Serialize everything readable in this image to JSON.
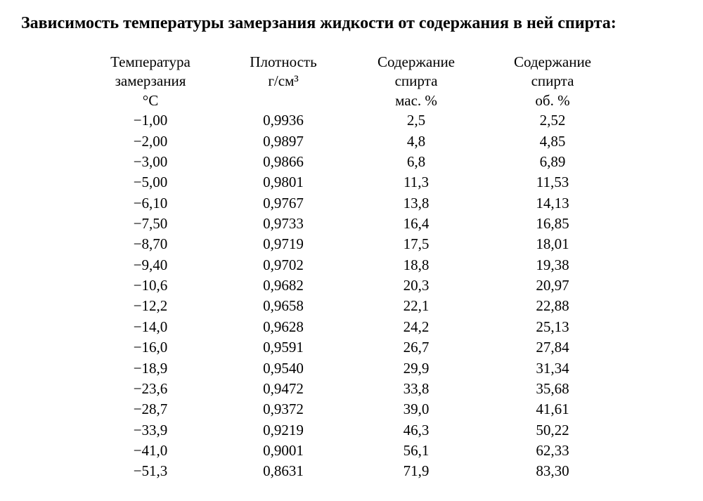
{
  "title": "Зависимость температуры замерзания жидкости от содержания в ней спирта:",
  "table": {
    "type": "table",
    "background_color": "#ffffff",
    "text_color": "#000000",
    "font_family": "Times New Roman",
    "title_fontsize": 24,
    "body_fontsize": 21,
    "columns": [
      {
        "l1": "Температура",
        "l2": "замерзания",
        "l3": "°C"
      },
      {
        "l1": "Плотность",
        "l2": "г/см³",
        "l3": ""
      },
      {
        "l1": "Содержание",
        "l2": "спирта",
        "l3": "мас. %"
      },
      {
        "l1": "Содержание",
        "l2": "спирта",
        "l3": "об. %"
      }
    ],
    "rows": [
      [
        "−1,00",
        "0,9936",
        "2,5",
        "2,52"
      ],
      [
        "−2,00",
        "0,9897",
        "4,8",
        "4,85"
      ],
      [
        "−3,00",
        "0,9866",
        "6,8",
        "6,89"
      ],
      [
        "−5,00",
        "0,9801",
        "11,3",
        "11,53"
      ],
      [
        "−6,10",
        "0,9767",
        "13,8",
        "14,13"
      ],
      [
        "−7,50",
        "0,9733",
        "16,4",
        "16,85"
      ],
      [
        "−8,70",
        "0,9719",
        "17,5",
        "18,01"
      ],
      [
        "−9,40",
        "0,9702",
        "18,8",
        "19,38"
      ],
      [
        "−10,6",
        "0,9682",
        "20,3",
        "20,97"
      ],
      [
        "−12,2",
        "0,9658",
        "22,1",
        "22,88"
      ],
      [
        "−14,0",
        "0,9628",
        "24,2",
        "25,13"
      ],
      [
        "−16,0",
        "0,9591",
        "26,7",
        "27,84"
      ],
      [
        "−18,9",
        "0,9540",
        "29,9",
        "31,34"
      ],
      [
        "−23,6",
        "0,9472",
        "33,8",
        "35,68"
      ],
      [
        "−28,7",
        "0,9372",
        "39,0",
        "41,61"
      ],
      [
        "−33,9",
        "0,9219",
        "46,3",
        "50,22"
      ],
      [
        "−41,0",
        "0,9001",
        "56,1",
        "62,33"
      ],
      [
        "−51,3",
        "0,8631",
        "71,9",
        "83,30"
      ]
    ]
  }
}
